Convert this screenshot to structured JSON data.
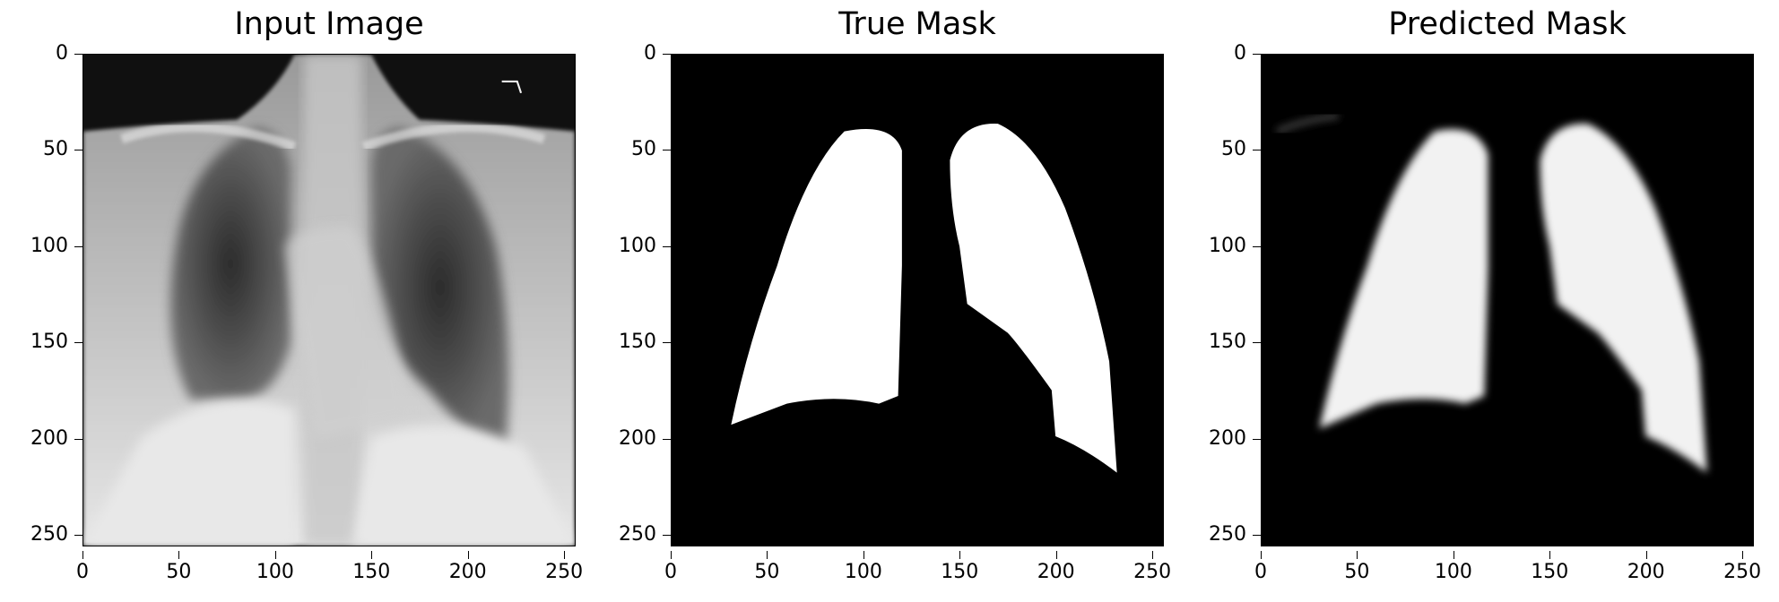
{
  "panels": [
    {
      "title": "Input Image",
      "kind": "xray"
    },
    {
      "title": "True Mask",
      "kind": "true-mask"
    },
    {
      "title": "Predicted Mask",
      "kind": "predicted-mask"
    }
  ],
  "axis": {
    "xticks": [
      "0",
      "50",
      "100",
      "150",
      "200",
      "250"
    ],
    "yticks": [
      "0",
      "50",
      "100",
      "150",
      "200",
      "250"
    ],
    "range": [
      0,
      256
    ]
  }
}
